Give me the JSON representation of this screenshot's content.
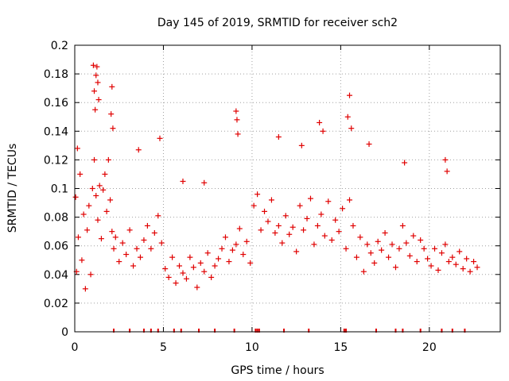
{
  "chart_data": {
    "type": "scatter",
    "title": "Day 145 of 2019, SRMTID for receiver sch2",
    "xlabel": "GPS time / hours",
    "ylabel": "SRMTID / TECUs",
    "xlim": [
      0,
      24
    ],
    "ylim": [
      0,
      0.2
    ],
    "x_ticks": [
      0,
      5,
      10,
      15,
      20
    ],
    "y_ticks": [
      0,
      0.02,
      0.04,
      0.06,
      0.08,
      0.1,
      0.12,
      0.14,
      0.16,
      0.18,
      0.2
    ],
    "grid": true,
    "marker": "+",
    "series": [
      {
        "name": "SRMTID",
        "color": "#e00000",
        "x": [
          0.05,
          0.1,
          0.15,
          0.2,
          0.3,
          0.4,
          0.5,
          0.6,
          0.7,
          0.8,
          0.9,
          1.0,
          1.1,
          1.2,
          1.3,
          1.4,
          1.5,
          1.6,
          1.7,
          1.8,
          1.9,
          2.0,
          2.1,
          2.2,
          2.3,
          2.5,
          2.7,
          2.9,
          3.1,
          3.3,
          3.5,
          3.7,
          3.9,
          4.1,
          4.3,
          4.5,
          4.7,
          4.9,
          5.1,
          5.3,
          5.5,
          5.7,
          5.9,
          6.1,
          6.3,
          6.5,
          6.7,
          6.9,
          7.1,
          7.3,
          7.5,
          7.7,
          7.9,
          8.1,
          8.3,
          8.5,
          8.7,
          8.9,
          9.1,
          9.3,
          9.5,
          9.7,
          9.9,
          10.1,
          10.3,
          10.5,
          10.7,
          10.9,
          11.1,
          11.3,
          11.5,
          11.7,
          11.9,
          12.1,
          12.3,
          12.5,
          12.7,
          12.9,
          13.1,
          13.3,
          13.5,
          13.7,
          13.9,
          14.1,
          14.3,
          14.5,
          14.7,
          14.9,
          15.1,
          15.3,
          15.5,
          15.7,
          15.9,
          16.1,
          16.3,
          16.5,
          16.7,
          16.9,
          17.1,
          17.3,
          17.5,
          17.7,
          17.9,
          18.1,
          18.3,
          18.5,
          18.7,
          18.9,
          19.1,
          19.3,
          19.5,
          19.7,
          19.9,
          20.1,
          20.3,
          20.5,
          20.7,
          20.9,
          21.1,
          21.3,
          21.5,
          21.7,
          21.9,
          22.1,
          22.3,
          22.5,
          22.7,
          1.05,
          1.1,
          1.15,
          1.2,
          1.25,
          1.3,
          1.35,
          2.05,
          2.1,
          2.15,
          9.1,
          9.15,
          9.2,
          15.4,
          15.5,
          15.6,
          13.8,
          14.0,
          3.6,
          4.8,
          11.5,
          12.8,
          16.6,
          18.6,
          20.9,
          21.0,
          6.1,
          7.3
        ],
        "y": [
          0.094,
          0.042,
          0.128,
          0.066,
          0.11,
          0.05,
          0.082,
          0.03,
          0.071,
          0.088,
          0.04,
          0.1,
          0.12,
          0.095,
          0.078,
          0.102,
          0.065,
          0.099,
          0.11,
          0.084,
          0.12,
          0.092,
          0.07,
          0.058,
          0.066,
          0.049,
          0.062,
          0.054,
          0.071,
          0.046,
          0.058,
          0.052,
          0.064,
          0.074,
          0.058,
          0.069,
          0.081,
          0.062,
          0.044,
          0.038,
          0.052,
          0.034,
          0.046,
          0.041,
          0.037,
          0.052,
          0.045,
          0.031,
          0.048,
          0.042,
          0.055,
          0.038,
          0.046,
          0.051,
          0.058,
          0.066,
          0.049,
          0.057,
          0.061,
          0.072,
          0.054,
          0.063,
          0.048,
          0.088,
          0.096,
          0.071,
          0.084,
          0.077,
          0.092,
          0.069,
          0.074,
          0.062,
          0.081,
          0.068,
          0.073,
          0.056,
          0.088,
          0.071,
          0.079,
          0.093,
          0.061,
          0.074,
          0.082,
          0.067,
          0.091,
          0.064,
          0.078,
          0.07,
          0.086,
          0.058,
          0.092,
          0.074,
          0.052,
          0.066,
          0.042,
          0.061,
          0.055,
          0.048,
          0.063,
          0.057,
          0.069,
          0.052,
          0.061,
          0.045,
          0.058,
          0.074,
          0.062,
          0.053,
          0.067,
          0.049,
          0.064,
          0.058,
          0.051,
          0.046,
          0.058,
          0.043,
          0.055,
          0.061,
          0.049,
          0.052,
          0.047,
          0.056,
          0.044,
          0.051,
          0.042,
          0.049,
          0.045,
          0.186,
          0.168,
          0.155,
          0.179,
          0.185,
          0.174,
          0.162,
          0.152,
          0.171,
          0.142,
          0.154,
          0.148,
          0.138,
          0.15,
          0.165,
          0.142,
          0.146,
          0.14,
          0.127,
          0.135,
          0.136,
          0.13,
          0.131,
          0.118,
          0.12,
          0.112,
          0.105,
          0.104
        ]
      }
    ],
    "gaps_marked_at": [
      2.2,
      3.1,
      3.9,
      4.3,
      4.7,
      5.6,
      6.0,
      7.0,
      7.9,
      9.0,
      10.2,
      10.3,
      10.4,
      11.8,
      13.2,
      15.2,
      15.3,
      17.0,
      18.1,
      18.5,
      19.5,
      20.7,
      21.3,
      22.0
    ]
  }
}
